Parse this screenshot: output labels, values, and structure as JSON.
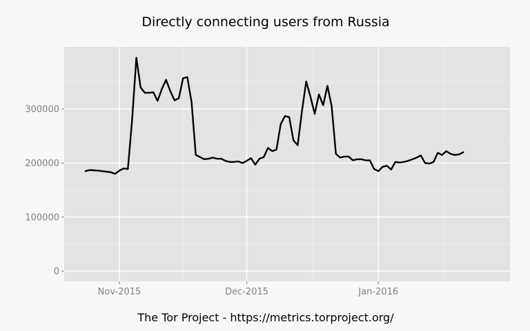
{
  "chart_data": {
    "type": "line",
    "title": "Directly connecting users from Russia",
    "caption": "The Tor Project - https://metrics.torproject.org/",
    "xlabel": "",
    "ylabel": "",
    "x_tick_labels": [
      "Nov-2015",
      "Dec-2015",
      "Jan-2016"
    ],
    "x_tick_dates": [
      "2015-11-01",
      "2015-12-01",
      "2016-01-01"
    ],
    "xlim": [
      "2015-10-19",
      "2016-02-01"
    ],
    "y_tick_labels": [
      "0",
      "100000",
      "200000",
      "300000"
    ],
    "y_ticks": [
      0,
      100000,
      200000,
      300000
    ],
    "ylim": [
      -19000,
      415000
    ],
    "grid": true,
    "series": [
      {
        "color": "#000000",
        "points": [
          [
            "2015-10-24",
            185000
          ],
          [
            "2015-10-25",
            187000
          ],
          [
            "2015-10-26",
            186500
          ],
          [
            "2015-10-27",
            186000
          ],
          [
            "2015-10-28",
            185000
          ],
          [
            "2015-10-29",
            184000
          ],
          [
            "2015-10-30",
            183000
          ],
          [
            "2015-10-31",
            180000
          ],
          [
            "2015-11-01",
            186000
          ],
          [
            "2015-11-02",
            190000
          ],
          [
            "2015-11-03",
            189000
          ],
          [
            "2015-11-04",
            280000
          ],
          [
            "2015-11-05",
            395000
          ],
          [
            "2015-11-06",
            340000
          ],
          [
            "2015-11-07",
            330000
          ],
          [
            "2015-11-08",
            330000
          ],
          [
            "2015-11-09",
            331000
          ],
          [
            "2015-11-10",
            315000
          ],
          [
            "2015-11-11",
            337000
          ],
          [
            "2015-11-12",
            354000
          ],
          [
            "2015-11-13",
            333000
          ],
          [
            "2015-11-14",
            316000
          ],
          [
            "2015-11-15",
            320000
          ],
          [
            "2015-11-16",
            357000
          ],
          [
            "2015-11-17",
            359000
          ],
          [
            "2015-11-18",
            313000
          ],
          [
            "2015-11-19",
            215000
          ],
          [
            "2015-11-20",
            211000
          ],
          [
            "2015-11-21",
            207000
          ],
          [
            "2015-11-22",
            208000
          ],
          [
            "2015-11-23",
            210000
          ],
          [
            "2015-11-24",
            208000
          ],
          [
            "2015-11-25",
            208000
          ],
          [
            "2015-11-26",
            204000
          ],
          [
            "2015-11-27",
            202000
          ],
          [
            "2015-11-28",
            202000
          ],
          [
            "2015-11-29",
            203000
          ],
          [
            "2015-11-30",
            200000
          ],
          [
            "2015-12-01",
            204000
          ],
          [
            "2015-12-02",
            209000
          ],
          [
            "2015-12-03",
            197000
          ],
          [
            "2015-12-04",
            208000
          ],
          [
            "2015-12-05",
            211000
          ],
          [
            "2015-12-06",
            228000
          ],
          [
            "2015-12-07",
            222000
          ],
          [
            "2015-12-08",
            225000
          ],
          [
            "2015-12-09",
            272000
          ],
          [
            "2015-12-10",
            287000
          ],
          [
            "2015-12-11",
            285000
          ],
          [
            "2015-12-12",
            242000
          ],
          [
            "2015-12-13",
            233000
          ],
          [
            "2015-12-14",
            296000
          ],
          [
            "2015-12-15",
            351000
          ],
          [
            "2015-12-16",
            323000
          ],
          [
            "2015-12-17",
            291000
          ],
          [
            "2015-12-18",
            327000
          ],
          [
            "2015-12-19",
            307000
          ],
          [
            "2015-12-20",
            343000
          ],
          [
            "2015-12-21",
            305000
          ],
          [
            "2015-12-22",
            217000
          ],
          [
            "2015-12-23",
            210000
          ],
          [
            "2015-12-24",
            212000
          ],
          [
            "2015-12-25",
            212000
          ],
          [
            "2015-12-26",
            205000
          ],
          [
            "2015-12-27",
            207000
          ],
          [
            "2015-12-28",
            207000
          ],
          [
            "2015-12-29",
            205000
          ],
          [
            "2015-12-30",
            205000
          ],
          [
            "2015-12-31",
            189000
          ],
          [
            "2016-01-01",
            185000
          ],
          [
            "2016-01-02",
            193000
          ],
          [
            "2016-01-03",
            195000
          ],
          [
            "2016-01-04",
            188000
          ],
          [
            "2016-01-05",
            202000
          ],
          [
            "2016-01-06",
            201000
          ],
          [
            "2016-01-07",
            202000
          ],
          [
            "2016-01-08",
            204000
          ],
          [
            "2016-01-09",
            207000
          ],
          [
            "2016-01-10",
            210000
          ],
          [
            "2016-01-11",
            214000
          ],
          [
            "2016-01-12",
            200000
          ],
          [
            "2016-01-13",
            199000
          ],
          [
            "2016-01-14",
            202000
          ],
          [
            "2016-01-15",
            219000
          ],
          [
            "2016-01-16",
            215000
          ],
          [
            "2016-01-17",
            222000
          ],
          [
            "2016-01-18",
            217000
          ],
          [
            "2016-01-19",
            215000
          ],
          [
            "2016-01-20",
            216000
          ],
          [
            "2016-01-21",
            220000
          ]
        ]
      }
    ]
  }
}
